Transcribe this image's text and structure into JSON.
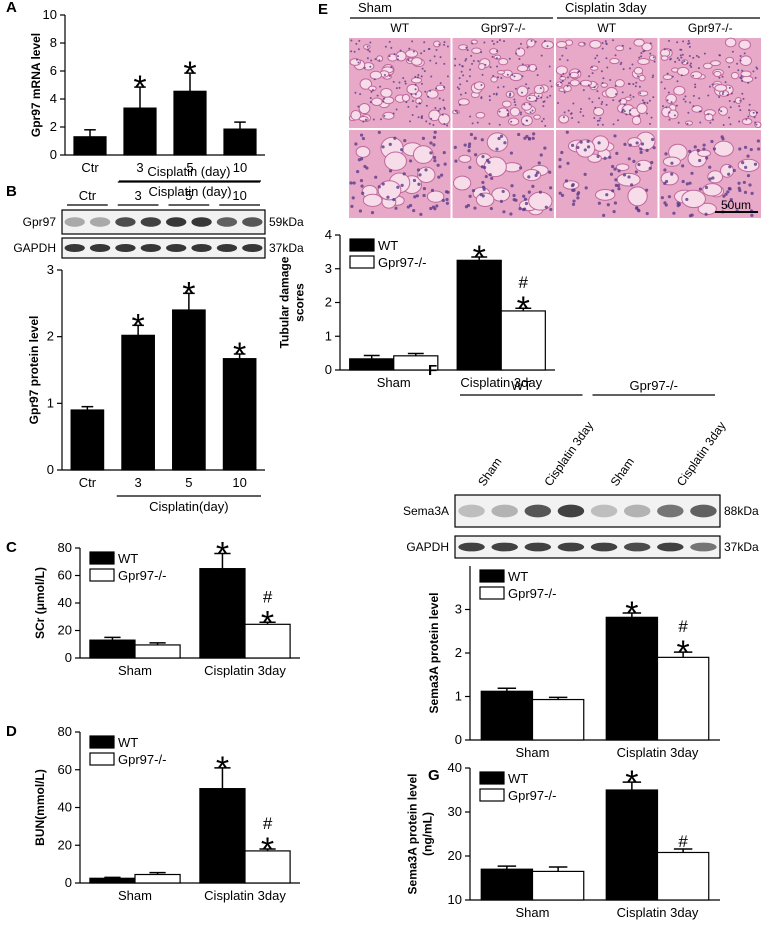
{
  "chart_data": [
    {
      "type": "bar",
      "panel": "A",
      "ylabel": "Gpr97 mRNA level",
      "categories": [
        "Ctr",
        "3",
        "5",
        "10"
      ],
      "values": [
        1.3,
        3.35,
        4.55,
        1.85
      ],
      "errors": [
        0.5,
        1.5,
        1.3,
        0.5
      ],
      "marks": [
        null,
        "*",
        "*",
        null
      ],
      "color": "#000000",
      "group_label": "Cisplatin (day)",
      "ylim": [
        0,
        10
      ],
      "yticks": [
        0,
        2,
        4,
        6,
        8,
        10
      ]
    },
    {
      "type": "bar",
      "ylabel": "Gpr97 protein level",
      "categories": [
        "Ctr",
        "3",
        "5",
        "10"
      ],
      "values": [
        0.9,
        2.02,
        2.4,
        1.67
      ],
      "errors": [
        0.05,
        0.15,
        0.25,
        0.07
      ],
      "marks": [
        null,
        "*",
        "*",
        "*"
      ],
      "color": "#000000",
      "group_label": "Cisplatin(day)",
      "ylim": [
        0,
        3
      ],
      "yticks": [
        0,
        1,
        2,
        3
      ]
    },
    {
      "type": "bar",
      "panel": "C",
      "ylabel": "SCr (μmol/L)",
      "categories": [
        "Sham",
        "Cisplatin 3day"
      ],
      "series": [
        {
          "name": "WT",
          "color": "#000000",
          "values": [
            13,
            65
          ],
          "errors": [
            2,
            11
          ],
          "marks": [
            null,
            [
              "*"
            ]
          ]
        },
        {
          "name": "Gpr97-/-",
          "color": "#ffffff",
          "values": [
            9.5,
            24.5
          ],
          "errors": [
            1.5,
            1.5
          ],
          "marks": [
            null,
            [
              "#",
              "*"
            ]
          ]
        }
      ],
      "ylim": [
        0,
        80
      ],
      "yticks": [
        0,
        20,
        40,
        60,
        80
      ]
    },
    {
      "type": "bar",
      "panel": "D",
      "ylabel": "BUN(mmol/L)",
      "categories": [
        "Sham",
        "Cisplatin 3day"
      ],
      "series": [
        {
          "name": "WT",
          "color": "#000000",
          "values": [
            2.5,
            50
          ],
          "errors": [
            0.5,
            11
          ],
          "marks": [
            null,
            [
              "*"
            ]
          ]
        },
        {
          "name": "Gpr97-/-",
          "color": "#ffffff",
          "values": [
            4.5,
            17
          ],
          "errors": [
            1,
            1
          ],
          "marks": [
            null,
            [
              "#",
              "*"
            ]
          ]
        }
      ],
      "ylim": [
        0,
        80
      ],
      "yticks": [
        0,
        20,
        40,
        60,
        80
      ]
    },
    {
      "type": "bar",
      "ylabel": [
        "Tubular damage",
        "scores"
      ],
      "categories": [
        "Sham",
        "Cisplatin 3day"
      ],
      "series": [
        {
          "name": "WT",
          "color": "#000000",
          "values": [
            0.33,
            3.25
          ],
          "errors": [
            0.1,
            0.1
          ],
          "marks": [
            null,
            [
              "*"
            ]
          ]
        },
        {
          "name": "Gpr97-/-",
          "color": "#ffffff",
          "values": [
            0.42,
            1.75
          ],
          "errors": [
            0.07,
            0.08
          ],
          "marks": [
            null,
            [
              "#",
              "*"
            ]
          ]
        }
      ],
      "ylim": [
        0,
        4
      ],
      "yticks": [
        0,
        1,
        2,
        3,
        4
      ]
    },
    {
      "type": "bar",
      "ylabel": "Sema3A protein level",
      "categories": [
        "Sham",
        "Cisplatin 3day"
      ],
      "series": [
        {
          "name": "WT",
          "color": "#000000",
          "values": [
            1.12,
            2.82
          ],
          "errors": [
            0.07,
            0.1
          ],
          "marks": [
            null,
            [
              "*"
            ]
          ]
        },
        {
          "name": "Gpr97-/-",
          "color": "#ffffff",
          "values": [
            0.93,
            1.9
          ],
          "errors": [
            0.05,
            0.12
          ],
          "marks": [
            null,
            [
              "#",
              "*"
            ]
          ]
        }
      ],
      "ylim": [
        0,
        4
      ],
      "yticks": [
        0,
        1,
        2,
        3
      ]
    },
    {
      "type": "bar",
      "panel": "G",
      "ylabel": [
        "Sema3A protein level",
        "(ng/mL)"
      ],
      "categories": [
        "Sham",
        "Cisplatin 3day"
      ],
      "series": [
        {
          "name": "WT",
          "color": "#000000",
          "values": [
            17,
            35
          ],
          "errors": [
            0.7,
            1.8
          ],
          "marks": [
            null,
            [
              "*"
            ]
          ]
        },
        {
          "name": "Gpr97-/-",
          "color": "#ffffff",
          "values": [
            16.5,
            20.8
          ],
          "errors": [
            1,
            0.8
          ],
          "marks": [
            null,
            [
              "#"
            ]
          ]
        }
      ],
      "ylim": [
        10,
        40
      ],
      "yticks": [
        10,
        20,
        30,
        40
      ]
    }
  ],
  "blots": [
    {
      "panel": "B",
      "header": "Cisplatin (day)",
      "groups": [
        "Ctr",
        "3",
        "5",
        "10"
      ],
      "rows": [
        {
          "name": "Gpr97",
          "size": "59kDa"
        },
        {
          "name": "GAPDH",
          "size": "37kDa"
        }
      ]
    },
    {
      "panel": "F",
      "groups": [
        "WT",
        "Gpr97-/-"
      ],
      "lanes": [
        "Sham",
        "Cisplatin 3day",
        "Sham",
        "Cisplatin 3day"
      ],
      "rows": [
        {
          "name": "Sema3A",
          "size": "88kDa"
        },
        {
          "name": "GAPDH",
          "size": "37kDa"
        }
      ]
    }
  ],
  "histology": {
    "panel": "E",
    "groups": [
      "Sham",
      "Cisplatin 3day"
    ],
    "columns": [
      "WT",
      "Gpr97-/-",
      "WT",
      "Gpr97-/-"
    ],
    "scale_bar": "50um"
  }
}
